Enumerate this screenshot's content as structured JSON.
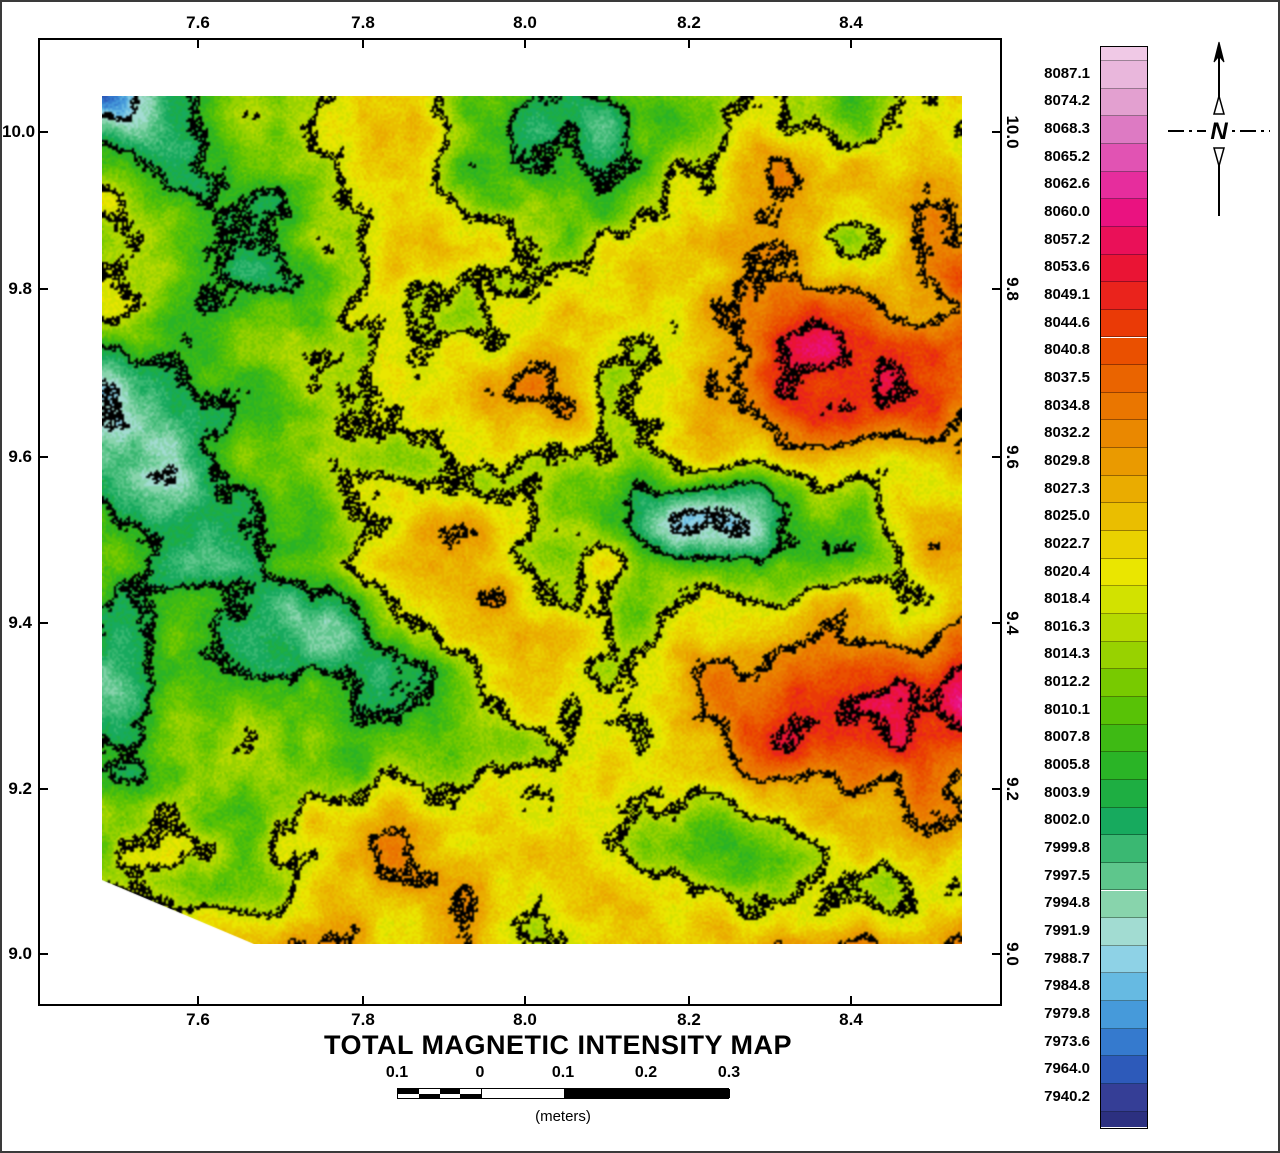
{
  "figure": {
    "title": "TOTAL MAGNETIC INTENSITY MAP",
    "north_label": "N",
    "axes": {
      "x_ticks": [
        "7.6",
        "7.8",
        "8.0",
        "8.2",
        "8.4"
      ],
      "y_ticks": [
        "10.0",
        "9.8",
        "9.6",
        "9.4",
        "9.2",
        "9.0"
      ]
    },
    "legend": {
      "labels": [
        "8087.1",
        "8074.2",
        "8068.3",
        "8065.2",
        "8062.6",
        "8060.0",
        "8057.2",
        "8053.6",
        "8049.1",
        "8044.6",
        "8040.8",
        "8037.5",
        "8034.8",
        "8032.2",
        "8029.8",
        "8027.3",
        "8025.0",
        "8022.7",
        "8020.4",
        "8018.4",
        "8016.3",
        "8014.3",
        "8012.2",
        "8010.1",
        "8007.8",
        "8005.8",
        "8003.9",
        "8002.0",
        "7999.8",
        "7997.5",
        "7994.8",
        "7991.9",
        "7988.7",
        "7984.8",
        "7979.8",
        "7973.6",
        "7964.0",
        "7940.2"
      ],
      "colors": [
        "#e9b7dc",
        "#e3a0d0",
        "#dd7ac3",
        "#e153b3",
        "#e62d9d",
        "#ea1280",
        "#ea1058",
        "#ea1434",
        "#ea231c",
        "#ea3a06",
        "#ea5000",
        "#ea6400",
        "#ea7600",
        "#ea8800",
        "#ea9a00",
        "#eaac00",
        "#eabe00",
        "#ead200",
        "#eae600",
        "#d2e200",
        "#b6da00",
        "#98d200",
        "#78ca00",
        "#58c206",
        "#3eba14",
        "#2ab426",
        "#1eae42",
        "#17aa5e",
        "#3ab872",
        "#5ec68c",
        "#88d4ac",
        "#a2dcd2",
        "#8ed2e6",
        "#66bae2",
        "#469ada",
        "#357ace",
        "#2d5aba",
        "#353e96"
      ],
      "cap_top_color": "#f0c9e6",
      "cap_bottom_color": "#2c3080"
    },
    "scale_bar": {
      "labels": [
        "0.1",
        "0",
        "0.1",
        "0.2",
        "0.3"
      ],
      "units": "(meters)"
    },
    "map": {
      "contour_color": "#000000",
      "background": "#ffffff"
    }
  }
}
